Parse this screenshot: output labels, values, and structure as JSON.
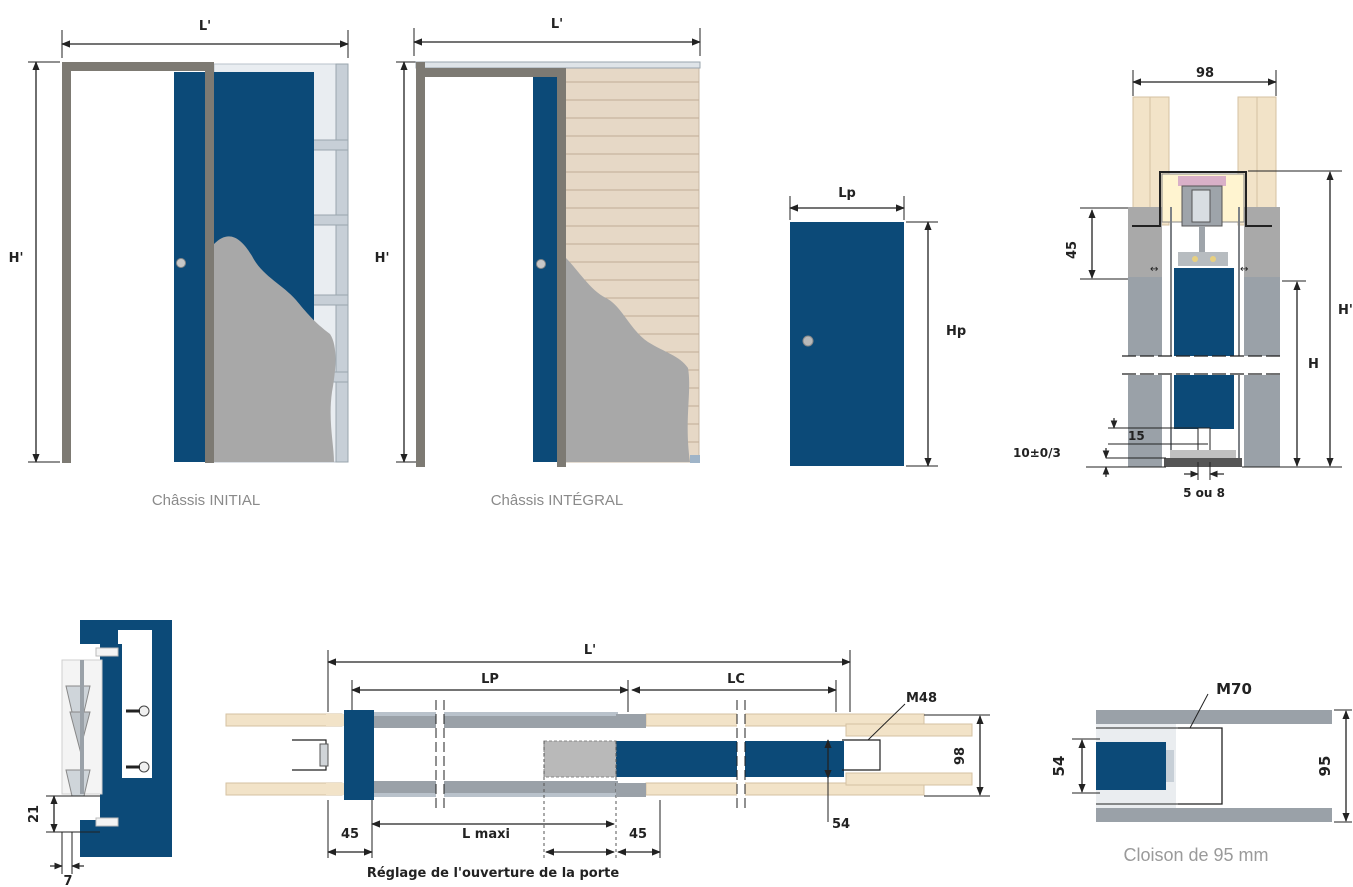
{
  "colors": {
    "door_blue": "#0c4a78",
    "frame_grey": "#7d7a73",
    "wood": "#f2e3c8",
    "plaster": "#a8a8a8",
    "metal": "#b9c2cb"
  },
  "initial": {
    "width_label": "L'",
    "height_label": "H'",
    "caption": "Châssis INITIAL"
  },
  "integral": {
    "width_label": "L'",
    "height_label": "H'",
    "caption": "Châssis INTÉGRAL"
  },
  "door": {
    "width_label": "Lp",
    "height_label": "Hp"
  },
  "section": {
    "top_width": "98",
    "dim_45": "45",
    "height_H": "H",
    "height_Hp": "H'",
    "dim_15": "15",
    "dim_10": "10±0/3",
    "dim_5ou8": "5 ou 8"
  },
  "profile": {
    "dim_21": "21",
    "dim_7": "7"
  },
  "plan": {
    "total_width": "L'",
    "lp": "LP",
    "lc": "LC",
    "m48": "M48",
    "thickness": "98",
    "dim_54": "54",
    "left_45": "45",
    "right_45": "45",
    "lmaxi": "L maxi",
    "caption": "Réglage de l'ouverture de la porte"
  },
  "cloison": {
    "m70": "M70",
    "dim_54": "54",
    "dim_95": "95",
    "caption": "Cloison de 95 mm"
  }
}
